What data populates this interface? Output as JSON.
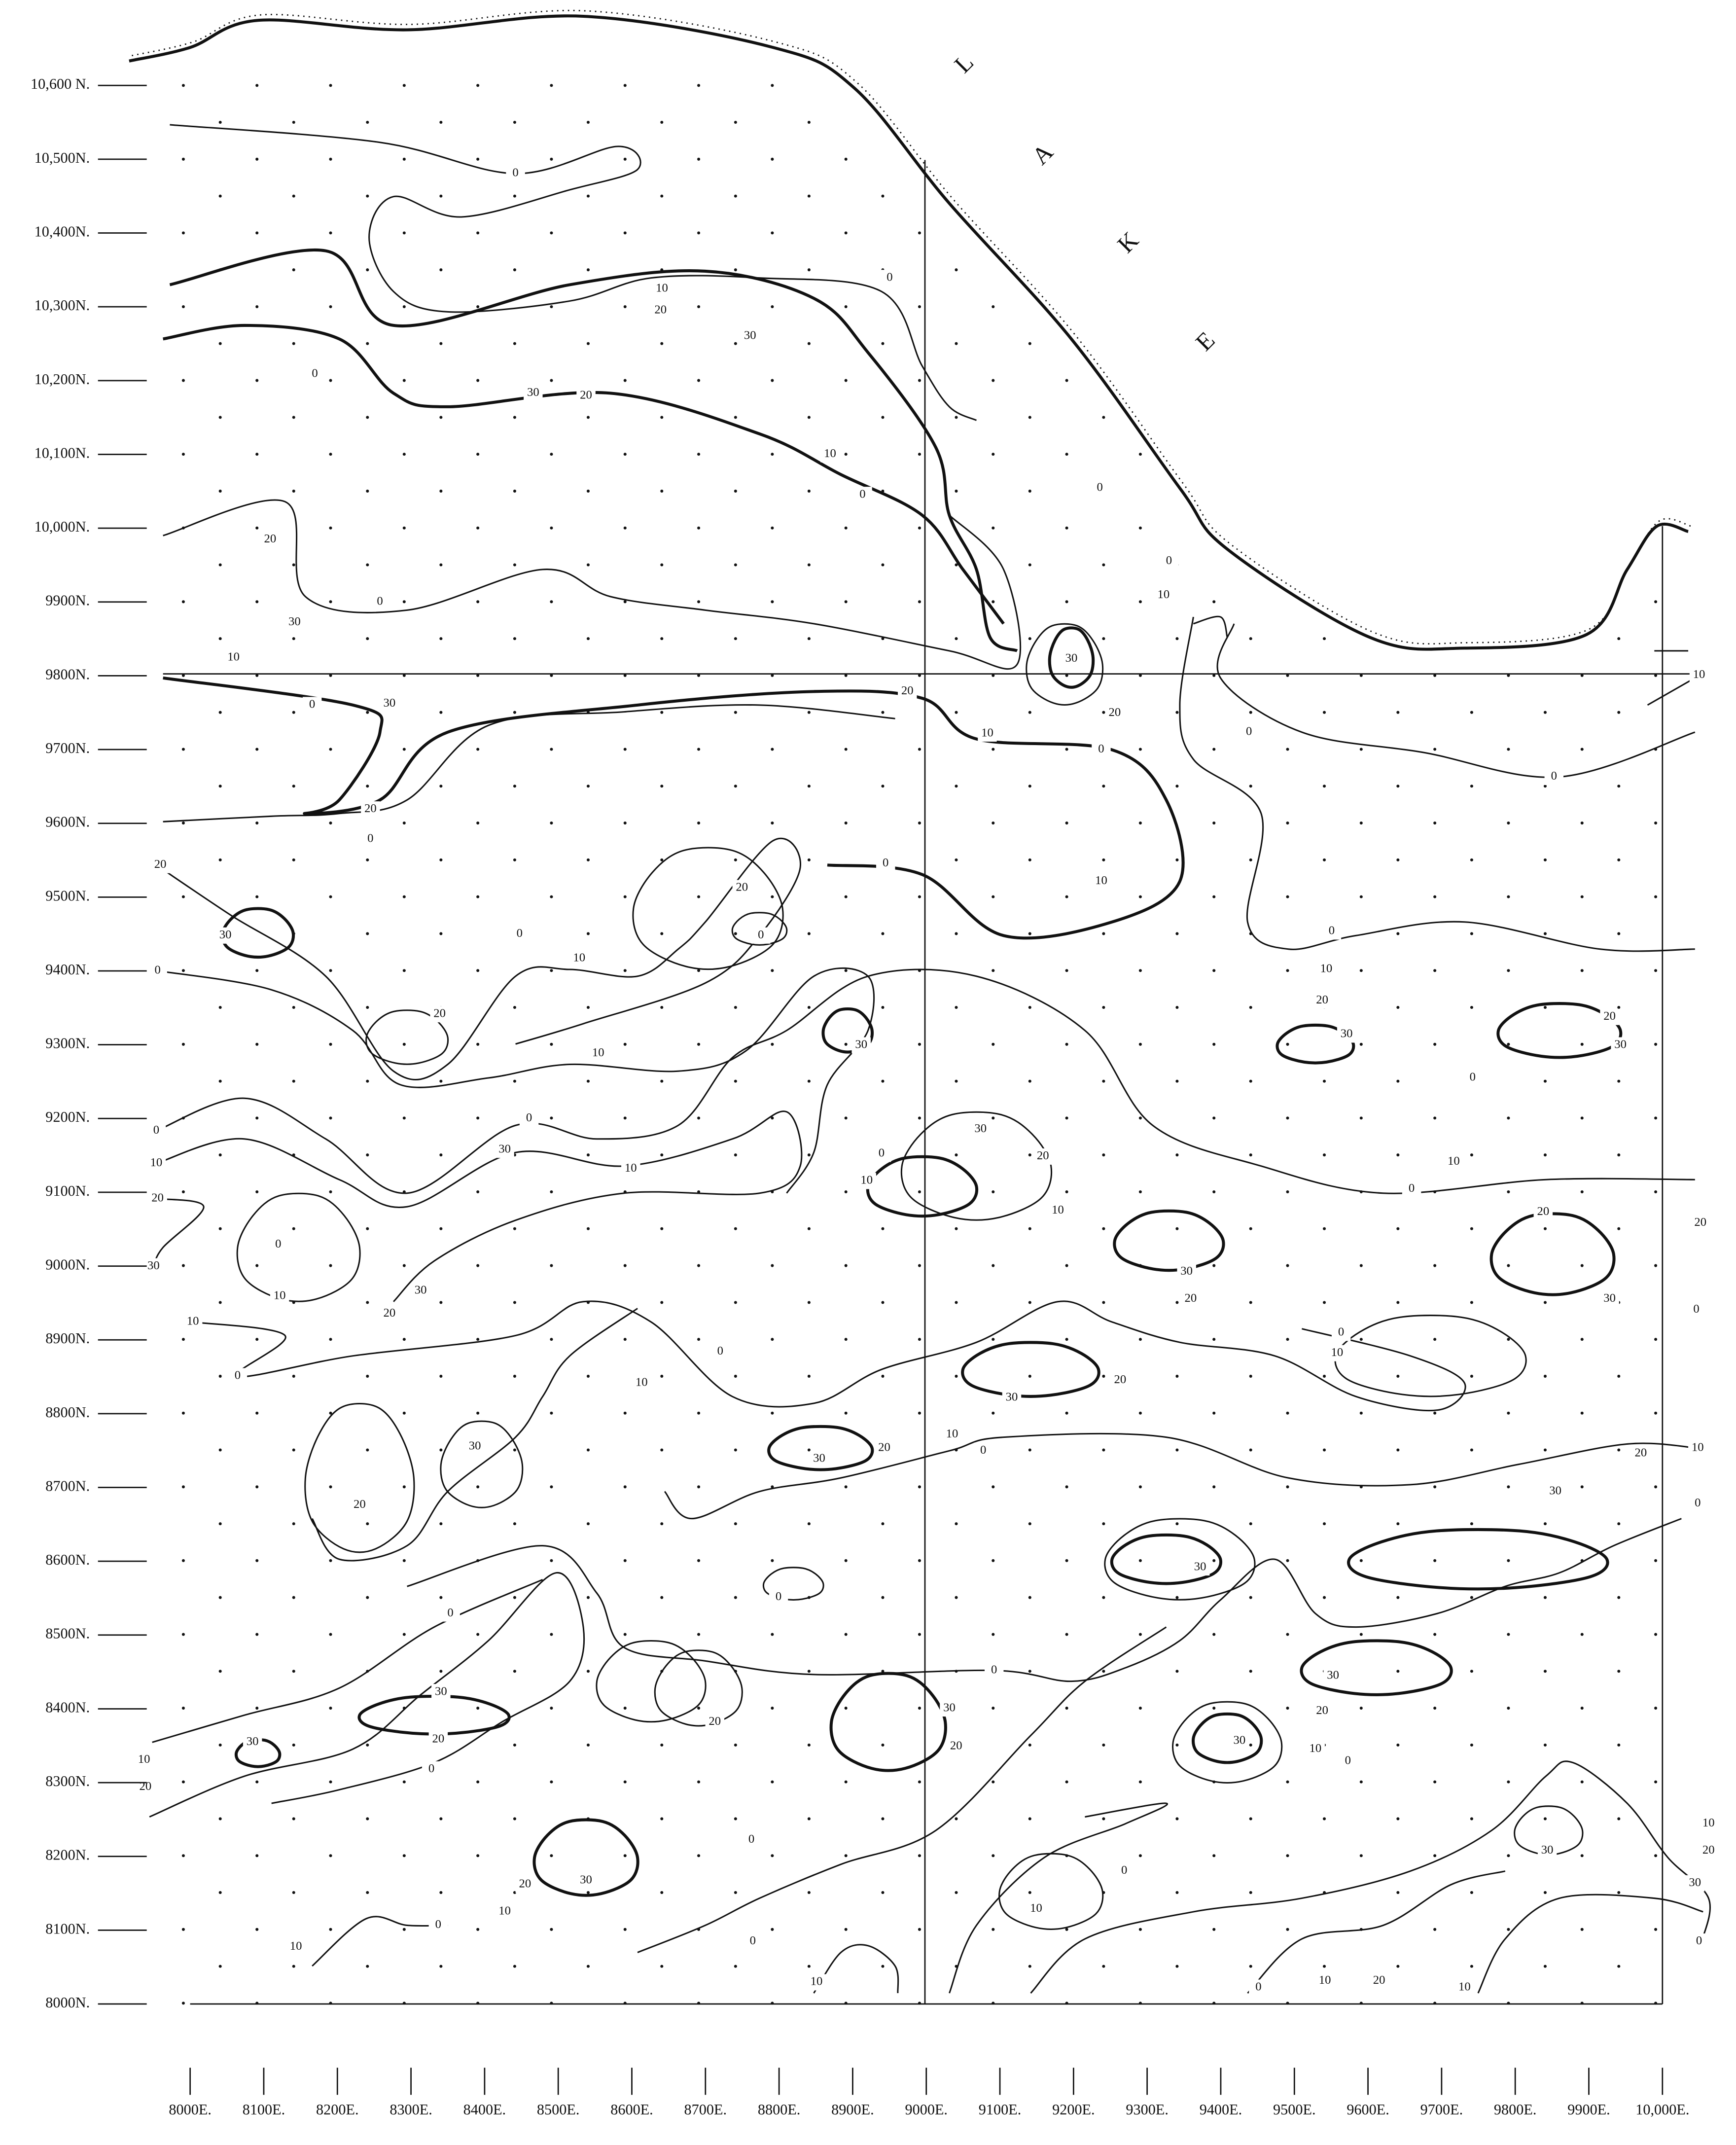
{
  "map": {
    "northings": [
      "10,600 N.",
      "10,500N.",
      "10,400N.",
      "10,300N.",
      "10,200N.",
      "10,100N.",
      "10,000N.",
      "9900N.",
      "9800N.",
      "9700N.",
      "9600N.",
      "9500N.",
      "9400N.",
      "9300N.",
      "9200N.",
      "9100N.",
      "9000N.",
      "8900N.",
      "8800N.",
      "8700N.",
      "8600N.",
      "8500N.",
      "8400N.",
      "8300N.",
      "8200N.",
      "8100N.",
      "8000N."
    ],
    "eastings": [
      "8000E.",
      "8100E.",
      "8200E.",
      "8300E.",
      "8400E.",
      "8500E.",
      "8600E.",
      "8700E.",
      "8800E.",
      "8900E.",
      "9000E.",
      "9100E.",
      "9200E.",
      "9300E.",
      "9400E.",
      "9500E.",
      "9600E.",
      "9700E.",
      "9800E.",
      "9900E.",
      "10,000E."
    ],
    "lake_letters": [
      "L",
      "A",
      "K",
      "E"
    ],
    "contour_labels": [
      0,
      10,
      20,
      0,
      30,
      30,
      20,
      0,
      10,
      0,
      0,
      0,
      10,
      20,
      0,
      30,
      10,
      0,
      30,
      20,
      30,
      20,
      10,
      0,
      0,
      0,
      10,
      20,
      0,
      0,
      10,
      20,
      0,
      30,
      20,
      0,
      10,
      0,
      0,
      10,
      20,
      30,
      20,
      30,
      0,
      20,
      10,
      30,
      0,
      30,
      10,
      0,
      10,
      20,
      30,
      0,
      10,
      20,
      30,
      30,
      20,
      0,
      10,
      10,
      30,
      20,
      0,
      10,
      20,
      20,
      30,
      0,
      10,
      0,
      0,
      10,
      30,
      20,
      0,
      10,
      30,
      20,
      30,
      20,
      10,
      0,
      10,
      20,
      0,
      30,
      30,
      0,
      0,
      0,
      30,
      20,
      0,
      30,
      10,
      20,
      20,
      30,
      20,
      30,
      20,
      30,
      10,
      0,
      0,
      20,
      10,
      30,
      0,
      10,
      0,
      10,
      30,
      10,
      20,
      30,
      0,
      0,
      10,
      20,
      10,
      10,
      0
    ]
  }
}
